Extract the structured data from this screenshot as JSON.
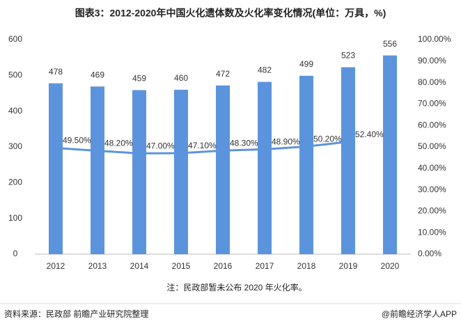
{
  "chart_data": {
    "type": "bar_line",
    "title": "图表3：2012-2020年中国火化遗体数及火化率变化情况(单位：万具，%)",
    "note": "注：民政部暂未公布 2020 年火化率。",
    "source": "资料来源：民政部 前瞻产业研究院整理",
    "brand": "@前瞻经济学人APP",
    "categories": [
      "2012",
      "2013",
      "2014",
      "2015",
      "2016",
      "2017",
      "2018",
      "2019",
      "2020"
    ],
    "series": [
      {
        "name": "火化遗体数",
        "type": "bar",
        "color": "#5b94dd",
        "values": [
          478,
          469,
          459,
          460,
          472,
          482,
          499,
          523,
          556
        ]
      },
      {
        "name": "火化率",
        "type": "line",
        "axis": "y2",
        "color": "#5b94dd",
        "values": [
          49.5,
          48.2,
          47.0,
          47.1,
          48.3,
          48.9,
          50.2,
          52.4,
          null
        ],
        "value_labels": [
          "49.50%",
          "48.20%",
          "47.00%",
          "47.10%",
          "48.30%",
          "48.90%",
          "50.20%",
          "52.40%",
          null
        ]
      }
    ],
    "ylim": [
      0,
      600
    ],
    "yticks": [
      0,
      100,
      200,
      300,
      400,
      500,
      600
    ],
    "y2lim": [
      0,
      100
    ],
    "y2ticks": [
      {
        "value": 0,
        "label": "0.00%"
      },
      {
        "value": 10,
        "label": "10.00%"
      },
      {
        "value": 20,
        "label": "20.00%"
      },
      {
        "value": 30,
        "label": "30.00%"
      },
      {
        "value": 40,
        "label": "40.00%"
      },
      {
        "value": 50,
        "label": "50.00%"
      },
      {
        "value": 60,
        "label": "60.00%"
      },
      {
        "value": 70,
        "label": "70.00%"
      },
      {
        "value": 80,
        "label": "80.00%"
      },
      {
        "value": 90,
        "label": "90.00%"
      },
      {
        "value": 100,
        "label": "100.00%"
      }
    ]
  }
}
